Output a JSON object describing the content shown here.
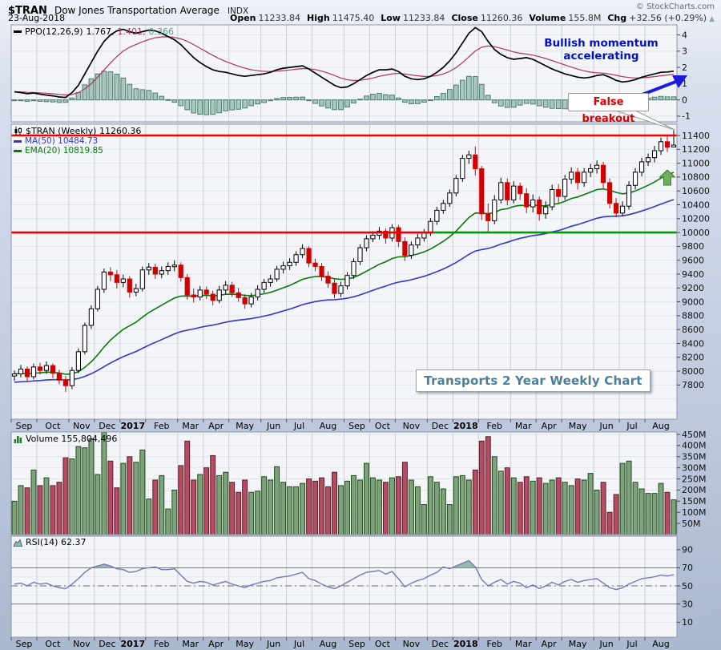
{
  "header": {
    "symbol": "$TRAN",
    "name": "Dow Jones Transportation Average",
    "exchange": "INDX",
    "date": "23-Aug-2018",
    "copyright": "© StockCharts.com",
    "quote": [
      {
        "label": "Open",
        "value": "11233.84"
      },
      {
        "label": "High",
        "value": "11475.40"
      },
      {
        "label": "Low",
        "value": "11233.84"
      },
      {
        "label": "Close",
        "value": "11260.36"
      },
      {
        "label": "Volume",
        "value": "155.8M"
      },
      {
        "label": "Chg",
        "value": "+32.56 (+0.29%)"
      }
    ],
    "change_icon": "▲"
  },
  "panels": {
    "ppo": {
      "label": "PPO(12,26,9)",
      "v1": "1.767,",
      "v2": "1.401,",
      "v3": "0.366"
    },
    "price": {
      "symbol": "$TRAN (Weekly) 11260.36",
      "ma50": "MA(50) 10484.73",
      "ema20": "EMA(20) 10819.85"
    },
    "volume": {
      "label": "Volume 155,804,496"
    },
    "rsi": {
      "label": "RSI(14) 62.37"
    }
  },
  "annotations": {
    "momentum": "Bullish momentum accelerating",
    "breakout": "False breakout",
    "caption": "Transports 2 Year Weekly Chart"
  },
  "colors": {
    "candle_down": "#d40000",
    "candle_up_fill": "#ffffff",
    "ma50": "#3038c8",
    "ema20": "#0b7a0b",
    "resistance": "#f20000",
    "support": "#009b00",
    "up_volume_fill": "#7ca37c",
    "up_volume_stroke": "#24481f",
    "down_volume_fill": "#b84b63",
    "down_volume_stroke": "#571f2b",
    "ppo_line": "#000000",
    "ppo_signal": "#b23553",
    "histogram_fill": "#a9c6bd",
    "histogram_stroke": "#4e7a6e",
    "histogram_text": "#5a9688",
    "rsi_line": "#7577b8",
    "rsi_shade": "#8fb8ab",
    "annotation_blue": "#1a1ae0",
    "annotation_red": "#e00000",
    "title_text": "#4b7e9b",
    "green_arrow": "#6fae5a"
  },
  "chart_data": {
    "type": "candlestick",
    "title": "$TRAN Dow Jones Transportation Average — Transports 2 Year Weekly Chart",
    "month_labels": [
      "Sep",
      "Oct",
      "Nov",
      "Dec",
      "2017",
      "Feb",
      "Mar",
      "Apr",
      "May",
      "Jun",
      "Jul",
      "Aug",
      "Sep",
      "Oct",
      "Nov",
      "Dec",
      "2018",
      "Feb",
      "Mar",
      "Apr",
      "May",
      "Jun",
      "Jul",
      "Aug"
    ],
    "month_starts": [
      0,
      4,
      9,
      13,
      17,
      21,
      26,
      30,
      34,
      39,
      43,
      47,
      52,
      56,
      60,
      65,
      69,
      73,
      78,
      82,
      86,
      91,
      95,
      99
    ],
    "weeks": 104,
    "candles": [
      [
        7930,
        8010,
        7860,
        7960
      ],
      [
        7960,
        8090,
        7910,
        8030
      ],
      [
        8030,
        8070,
        7850,
        7920
      ],
      [
        7920,
        8110,
        7880,
        8060
      ],
      [
        8060,
        8120,
        7950,
        8010
      ],
      [
        8010,
        8140,
        7960,
        8080
      ],
      [
        8080,
        8110,
        7900,
        7970
      ],
      [
        7970,
        8020,
        7810,
        7870
      ],
      [
        7870,
        7930,
        7700,
        7790
      ],
      [
        7790,
        8060,
        7740,
        8010
      ],
      [
        8010,
        8330,
        7970,
        8280
      ],
      [
        8280,
        8700,
        8240,
        8660
      ],
      [
        8660,
        8950,
        8610,
        8900
      ],
      [
        8900,
        9230,
        8860,
        9180
      ],
      [
        9180,
        9480,
        9130,
        9430
      ],
      [
        9430,
        9500,
        9300,
        9390
      ],
      [
        9390,
        9460,
        9190,
        9280
      ],
      [
        9280,
        9390,
        9210,
        9330
      ],
      [
        9330,
        9370,
        9060,
        9140
      ],
      [
        9140,
        9260,
        9080,
        9190
      ],
      [
        9190,
        9510,
        9150,
        9460
      ],
      [
        9460,
        9560,
        9390,
        9500
      ],
      [
        9500,
        9550,
        9330,
        9400
      ],
      [
        9400,
        9510,
        9340,
        9450
      ],
      [
        9450,
        9570,
        9390,
        9510
      ],
      [
        9510,
        9600,
        9440,
        9530
      ],
      [
        9530,
        9570,
        9290,
        9350
      ],
      [
        9350,
        9400,
        9030,
        9100
      ],
      [
        9100,
        9190,
        8990,
        9070
      ],
      [
        9070,
        9230,
        9020,
        9170
      ],
      [
        9170,
        9220,
        9040,
        9110
      ],
      [
        9110,
        9160,
        8950,
        9020
      ],
      [
        9020,
        9230,
        8980,
        9170
      ],
      [
        9170,
        9300,
        9110,
        9240
      ],
      [
        9240,
        9290,
        9070,
        9130
      ],
      [
        9130,
        9200,
        9000,
        9060
      ],
      [
        9060,
        9110,
        8900,
        8970
      ],
      [
        8970,
        9130,
        8920,
        9070
      ],
      [
        9070,
        9240,
        9020,
        9180
      ],
      [
        9180,
        9330,
        9130,
        9280
      ],
      [
        9280,
        9390,
        9220,
        9330
      ],
      [
        9330,
        9520,
        9290,
        9470
      ],
      [
        9470,
        9580,
        9410,
        9520
      ],
      [
        9520,
        9630,
        9460,
        9570
      ],
      [
        9570,
        9730,
        9520,
        9680
      ],
      [
        9680,
        9830,
        9630,
        9770
      ],
      [
        9770,
        9800,
        9500,
        9560
      ],
      [
        9560,
        9620,
        9440,
        9510
      ],
      [
        9510,
        9560,
        9300,
        9370
      ],
      [
        9370,
        9440,
        9200,
        9270
      ],
      [
        9270,
        9320,
        9050,
        9120
      ],
      [
        9120,
        9290,
        9070,
        9230
      ],
      [
        9230,
        9430,
        9180,
        9380
      ],
      [
        9380,
        9630,
        9330,
        9580
      ],
      [
        9580,
        9830,
        9530,
        9780
      ],
      [
        9780,
        9960,
        9730,
        9910
      ],
      [
        9910,
        10020,
        9860,
        9960
      ],
      [
        9960,
        10080,
        9900,
        10020
      ],
      [
        10020,
        10060,
        9840,
        9920
      ],
      [
        9920,
        10120,
        9870,
        10070
      ],
      [
        10070,
        10110,
        9790,
        9870
      ],
      [
        9870,
        9930,
        9590,
        9670
      ],
      [
        9670,
        9870,
        9620,
        9820
      ],
      [
        9820,
        9980,
        9770,
        9920
      ],
      [
        9920,
        10050,
        9870,
        10000
      ],
      [
        10000,
        10210,
        9950,
        10160
      ],
      [
        10160,
        10370,
        10110,
        10320
      ],
      [
        10320,
        10470,
        10270,
        10420
      ],
      [
        10420,
        10620,
        10370,
        10570
      ],
      [
        10570,
        10830,
        10520,
        10780
      ],
      [
        10780,
        11120,
        10730,
        11070
      ],
      [
        11070,
        11180,
        10990,
        11120
      ],
      [
        11120,
        11240,
        10820,
        10920
      ],
      [
        10920,
        10960,
        10180,
        10270
      ],
      [
        10270,
        10420,
        9990,
        10170
      ],
      [
        10170,
        10540,
        10120,
        10470
      ],
      [
        10470,
        10790,
        10420,
        10720
      ],
      [
        10720,
        10780,
        10390,
        10470
      ],
      [
        10470,
        10740,
        10420,
        10670
      ],
      [
        10670,
        10720,
        10470,
        10560
      ],
      [
        10560,
        10640,
        10280,
        10370
      ],
      [
        10370,
        10550,
        10290,
        10470
      ],
      [
        10470,
        10520,
        10170,
        10270
      ],
      [
        10270,
        10450,
        10200,
        10370
      ],
      [
        10370,
        10690,
        10320,
        10620
      ],
      [
        10620,
        10700,
        10420,
        10520
      ],
      [
        10520,
        10830,
        10470,
        10770
      ],
      [
        10770,
        10940,
        10700,
        10870
      ],
      [
        10870,
        10930,
        10620,
        10720
      ],
      [
        10720,
        10930,
        10660,
        10870
      ],
      [
        10870,
        10990,
        10800,
        10920
      ],
      [
        10920,
        11040,
        10850,
        10970
      ],
      [
        10970,
        11020,
        10640,
        10720
      ],
      [
        10720,
        10780,
        10350,
        10420
      ],
      [
        10420,
        10500,
        10220,
        10280
      ],
      [
        10280,
        10450,
        10230,
        10380
      ],
      [
        10380,
        10740,
        10330,
        10680
      ],
      [
        10680,
        10930,
        10620,
        10870
      ],
      [
        10870,
        11080,
        10810,
        11020
      ],
      [
        11020,
        11140,
        10960,
        11080
      ],
      [
        11080,
        11250,
        11010,
        11180
      ],
      [
        11180,
        11370,
        11120,
        11310
      ],
      [
        11310,
        11390,
        11160,
        11230
      ],
      [
        11233.84,
        11475.4,
        11233.84,
        11260.36
      ]
    ],
    "volume_millions": [
      150,
      220,
      210,
      290,
      220,
      255,
      220,
      235,
      345,
      340,
      395,
      390,
      430,
      270,
      460,
      330,
      210,
      320,
      350,
      325,
      380,
      160,
      245,
      265,
      115,
      200,
      310,
      420,
      245,
      270,
      300,
      355,
      265,
      280,
      235,
      190,
      245,
      190,
      195,
      260,
      245,
      305,
      235,
      215,
      215,
      230,
      250,
      240,
      255,
      215,
      280,
      220,
      240,
      265,
      245,
      320,
      255,
      245,
      235,
      255,
      260,
      325,
      245,
      215,
      135,
      260,
      235,
      205,
      135,
      260,
      265,
      245,
      290,
      420,
      440,
      350,
      285,
      300,
      255,
      235,
      260,
      240,
      255,
      230,
      245,
      255,
      235,
      220,
      250,
      245,
      275,
      200,
      235,
      100,
      180,
      320,
      330,
      235,
      205,
      185,
      185,
      230,
      190,
      156
    ],
    "rsi": [
      52,
      53,
      50,
      54,
      52,
      53,
      50,
      48,
      47,
      52,
      58,
      65,
      70,
      72,
      74,
      72,
      69,
      68,
      65,
      66,
      69,
      70,
      71,
      68,
      68,
      69,
      62,
      55,
      53,
      55,
      54,
      51,
      53,
      55,
      52,
      50,
      48,
      51,
      53,
      55,
      56,
      59,
      60,
      61,
      63,
      65,
      58,
      56,
      52,
      49,
      47,
      50,
      54,
      58,
      62,
      65,
      66,
      67,
      63,
      66,
      58,
      49,
      53,
      56,
      58,
      62,
      65,
      71,
      69,
      72,
      75,
      78,
      71,
      57,
      50,
      54,
      57,
      52,
      55,
      53,
      48,
      51,
      47,
      50,
      54,
      51,
      55,
      57,
      54,
      56,
      57,
      58,
      53,
      48,
      46,
      48,
      52,
      55,
      58,
      59,
      60,
      62,
      61,
      62.37
    ],
    "ppo": [
      0.5,
      0.45,
      0.38,
      0.42,
      0.35,
      0.3,
      0.25,
      0.18,
      0.15,
      0.45,
      0.9,
      1.6,
      2.3,
      3.0,
      3.6,
      4.0,
      4.25,
      4.35,
      4.2,
      4.1,
      4.2,
      4.3,
      4.25,
      4.1,
      3.9,
      3.7,
      3.4,
      3.0,
      2.6,
      2.3,
      2.05,
      1.85,
      1.75,
      1.7,
      1.6,
      1.5,
      1.45,
      1.5,
      1.55,
      1.6,
      1.7,
      1.85,
      1.95,
      2.0,
      2.05,
      2.1,
      1.9,
      1.65,
      1.4,
      1.15,
      0.9,
      0.75,
      0.8,
      1.0,
      1.25,
      1.5,
      1.7,
      1.85,
      1.85,
      1.9,
      1.75,
      1.45,
      1.3,
      1.25,
      1.3,
      1.45,
      1.7,
      2.0,
      2.4,
      2.9,
      3.5,
      4.1,
      4.45,
      4.2,
      3.6,
      3.1,
      2.8,
      2.6,
      2.5,
      2.55,
      2.6,
      2.5,
      2.3,
      2.1,
      1.9,
      1.75,
      1.6,
      1.5,
      1.4,
      1.35,
      1.4,
      1.5,
      1.55,
      1.4,
      1.2,
      1.1,
      1.15,
      1.25,
      1.4,
      1.5,
      1.6,
      1.7,
      1.72,
      1.767
    ],
    "overlays": {
      "ma50_period": 50,
      "ema20_period": 20,
      "ppo_signal_period": 9
    },
    "levels": {
      "resistance": 11400,
      "support": 10000,
      "support_color_change_week": 66,
      "rsi_lines": [
        70,
        50,
        30
      ]
    },
    "axis": {
      "price_ticks": [
        11400,
        11200,
        11000,
        10800,
        10600,
        10400,
        10200,
        10000,
        9800,
        9600,
        9400,
        9200,
        9000,
        8800,
        8600,
        8400,
        8200,
        8000,
        7800
      ],
      "volume_ticks": [
        450,
        400,
        350,
        300,
        250,
        200,
        150,
        100,
        50
      ],
      "volume_tick_labels": [
        "450M",
        "400M",
        "350M",
        "300M",
        "250M",
        "200M",
        "150M",
        "100M",
        "50M"
      ],
      "rsi_ticks": [
        90,
        70,
        50,
        30,
        10
      ],
      "ppo_ticks": [
        4,
        3,
        2,
        1,
        0,
        -1
      ]
    },
    "ylim_price": [
      7307,
      11562
    ],
    "grid": true,
    "legend_position": "top-left"
  }
}
